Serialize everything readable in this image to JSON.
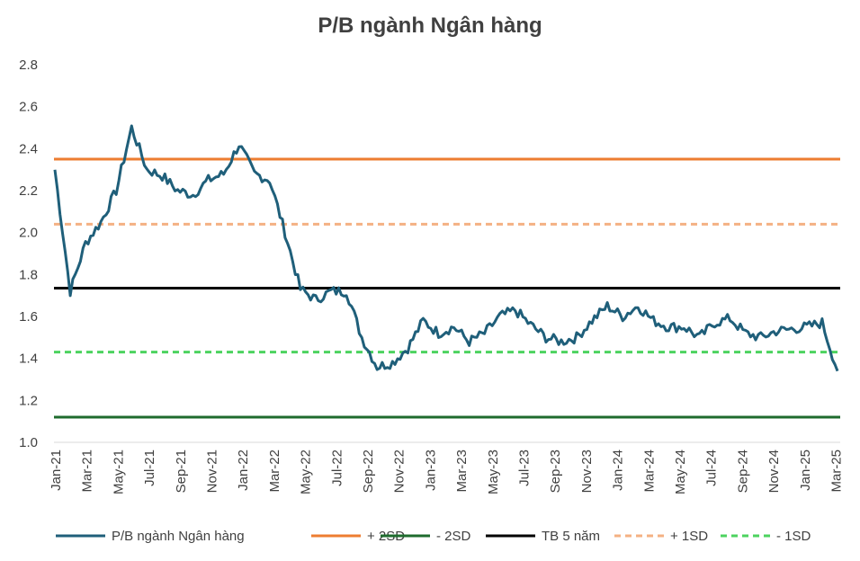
{
  "chart_data": {
    "type": "line",
    "title": "P/B ngành Ngân hàng",
    "xlabel": "",
    "ylabel": "",
    "ylim": [
      1.0,
      2.8
    ],
    "yticks": [
      "1.0",
      "1.2",
      "1.4",
      "1.6",
      "1.8",
      "2.0",
      "2.2",
      "2.4",
      "2.6",
      "2.8"
    ],
    "xticks": [
      "Jan-21",
      "Mar-21",
      "May-21",
      "Jul-21",
      "Sep-21",
      "Nov-21",
      "Jan-22",
      "Mar-22",
      "May-22",
      "Jul-22",
      "Sep-22",
      "Nov-22",
      "Jan-23",
      "Mar-23",
      "May-23",
      "Jul-23",
      "Sep-23",
      "Nov-23",
      "Jan-24",
      "Mar-24",
      "May-24",
      "Jul-24",
      "Sep-24",
      "Nov-24",
      "Jan-25",
      "Mar-25"
    ],
    "grid": false,
    "legend_position": "bottom",
    "series": [
      {
        "name": "P/B ngành Ngân hàng",
        "color": "#1f5f7a",
        "style": "solid",
        "x": [
          "Jan-21",
          "Feb-21",
          "Mar-21",
          "Apr-21",
          "May-21",
          "Jun-21",
          "Jul-21",
          "Aug-21",
          "Sep-21",
          "Oct-21",
          "Nov-21",
          "Dec-21",
          "Jan-22",
          "Feb-22",
          "Mar-22",
          "Apr-22",
          "May-22",
          "Jun-22",
          "Jul-22",
          "Aug-22",
          "Sep-22",
          "Oct-22",
          "Nov-22",
          "Dec-22",
          "Jan-23",
          "Feb-23",
          "Mar-23",
          "Apr-23",
          "May-23",
          "Jun-23",
          "Jul-23",
          "Aug-23",
          "Sep-23",
          "Oct-23",
          "Nov-23",
          "Dec-23",
          "Jan-24",
          "Feb-24",
          "Mar-24",
          "Apr-24",
          "May-24",
          "Jun-24",
          "Jul-24",
          "Aug-24",
          "Sep-24",
          "Oct-24",
          "Nov-24",
          "Dec-24",
          "Jan-25",
          "Feb-25",
          "Mar-25",
          "Apr-25"
        ],
        "values": [
          2.3,
          1.72,
          1.95,
          2.05,
          2.2,
          2.5,
          2.3,
          2.27,
          2.2,
          2.18,
          2.25,
          2.28,
          2.42,
          2.28,
          2.25,
          2.0,
          1.73,
          1.68,
          1.72,
          1.72,
          1.5,
          1.36,
          1.38,
          1.45,
          1.58,
          1.52,
          1.55,
          1.48,
          1.52,
          1.6,
          1.63,
          1.56,
          1.5,
          1.48,
          1.5,
          1.58,
          1.65,
          1.6,
          1.65,
          1.58,
          1.55,
          1.55,
          1.5,
          1.57,
          1.59,
          1.52,
          1.5,
          1.53,
          1.54,
          1.55,
          1.57,
          1.34
        ]
      },
      {
        "name": "+ 2SD",
        "color": "#ed7d31",
        "style": "solid",
        "value": 2.35
      },
      {
        "name": "- 2SD",
        "color": "#1e6b2d",
        "style": "solid",
        "value": 1.12
      },
      {
        "name": "TB 5 năm",
        "color": "#000000",
        "style": "solid",
        "value": 1.735
      },
      {
        "name": "+ 1SD",
        "color": "#f4b183",
        "style": "dashed",
        "value": 2.04
      },
      {
        "name": "- 1SD",
        "color": "#4cd35f",
        "style": "dashed",
        "value": 1.43
      }
    ]
  }
}
